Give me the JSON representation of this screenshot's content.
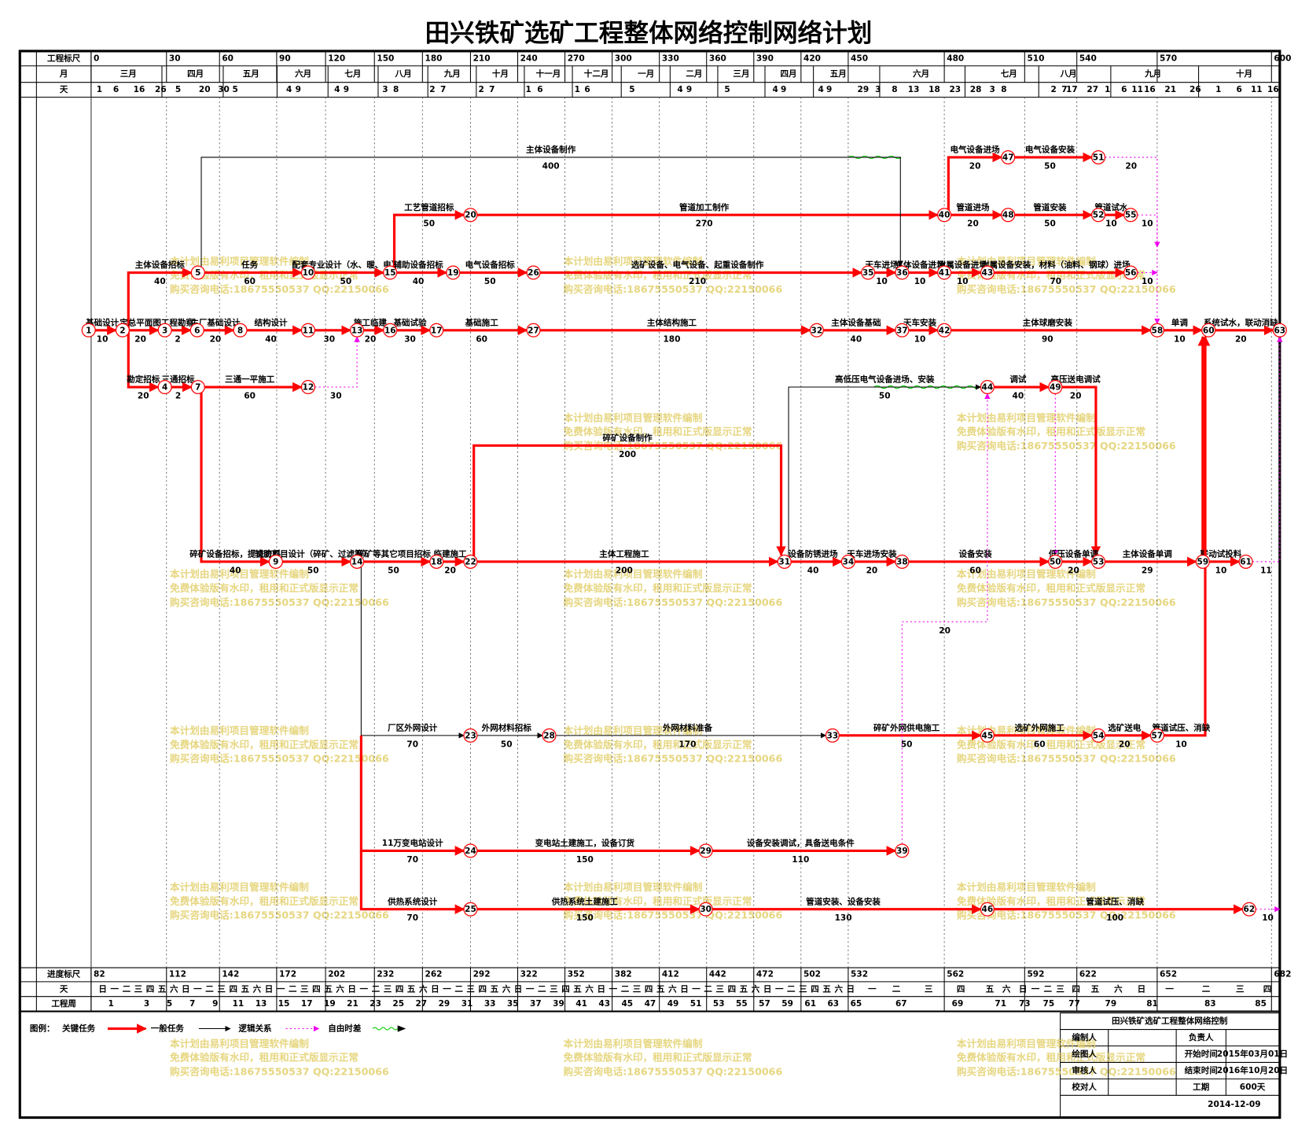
{
  "title": "田兴铁矿选矿工程整体网络控制网络计划",
  "header": {
    "scale_label": "工程标尺",
    "scale_ticks": [
      0,
      30,
      60,
      90,
      120,
      150,
      180,
      210,
      240,
      270,
      300,
      330,
      360,
      390,
      420,
      450,
      480,
      510,
      540,
      570,
      600
    ],
    "month_label": "月",
    "months": [
      "三月",
      "四月",
      "五月",
      "六月",
      "七月",
      "八月",
      "九月",
      "十月",
      "十一月",
      "十二月",
      "一月",
      "二月",
      "三月",
      "四月",
      "五月",
      "六月",
      "七月",
      "八月",
      "九月",
      "十月"
    ],
    "day_label": "天",
    "days": [
      1,
      6,
      16,
      26,
      5,
      20,
      30,
      5,
      4,
      9,
      4,
      9,
      3,
      8,
      2,
      7,
      2,
      7,
      1,
      6,
      1,
      6,
      5,
      4,
      9,
      5,
      4,
      9,
      4,
      9,
      29,
      3,
      8,
      13,
      18,
      23,
      28,
      3,
      8,
      2,
      7,
      17,
      27,
      1,
      6,
      11,
      16,
      21,
      26,
      1,
      6,
      11,
      16
    ]
  },
  "footer": {
    "progress_label": "进度标尺",
    "progress_ticks": [
      82,
      112,
      142,
      172,
      202,
      232,
      262,
      292,
      322,
      352,
      382,
      412,
      442,
      472,
      502,
      532,
      562,
      592,
      622,
      652,
      682
    ],
    "weekday_label": "天",
    "weekdays": [
      "日",
      "一",
      "二",
      "三",
      "四",
      "五",
      "六",
      "日",
      "一",
      "二",
      "三",
      "四",
      "五",
      "六",
      "日",
      "一",
      "二",
      "三",
      "四",
      "五",
      "六",
      "日",
      "一",
      "二",
      "三",
      "四",
      "五",
      "六",
      "日",
      "一",
      "二",
      "三",
      "四",
      "五",
      "六",
      "日",
      "一",
      "二",
      "三",
      "四",
      "五",
      "六",
      "日",
      "一",
      "二",
      "三",
      "四",
      "五",
      "六",
      "日",
      "一",
      "二",
      "三",
      "四",
      "五",
      "六",
      "日",
      "一",
      "二",
      "三",
      "四",
      "五",
      "六",
      "日",
      "一",
      "二",
      "三",
      "四",
      "五",
      "六",
      "日",
      "一",
      "二",
      "三",
      "四",
      "五",
      "六",
      "日",
      "一",
      "二",
      "三",
      "四"
    ],
    "week_label": "工程周",
    "weeks": [
      1,
      3,
      5,
      7,
      9,
      11,
      13,
      15,
      17,
      19,
      21,
      23,
      25,
      27,
      29,
      31,
      33,
      35,
      37,
      39,
      41,
      43,
      45,
      47,
      49,
      51,
      53,
      55,
      57,
      59,
      61,
      63,
      65,
      67,
      69,
      71,
      73,
      75,
      77,
      79,
      81,
      83,
      85
    ]
  },
  "nodes": [
    1,
    2,
    3,
    4,
    5,
    6,
    7,
    8,
    9,
    10,
    11,
    12,
    13,
    14,
    15,
    16,
    17,
    18,
    19,
    20,
    22,
    23,
    24,
    25,
    26,
    27,
    28,
    29,
    30,
    31,
    32,
    33,
    34,
    35,
    36,
    37,
    38,
    39,
    40,
    41,
    42,
    43,
    44,
    45,
    46,
    47,
    48,
    49,
    50,
    51,
    52,
    53,
    54,
    55,
    56,
    57,
    58,
    59,
    60,
    61,
    62,
    63
  ],
  "activities": [
    {
      "name": "基础设计",
      "duration": 10
    },
    {
      "name": "主体设备招标",
      "duration": 40
    },
    {
      "name": "定总平面图",
      "duration": 20
    },
    {
      "name": "勘定招标",
      "duration": 20
    },
    {
      "name": "工程勘察",
      "duration": 2
    },
    {
      "name": "三通招标",
      "duration": 2
    },
    {
      "name": "主厂基础设计",
      "duration": 20
    },
    {
      "name": "任务",
      "duration": 60
    },
    {
      "name": "结构设计",
      "duration": 40
    },
    {
      "name": "三通一平施工",
      "duration": 60
    },
    {
      "duration": 30
    },
    {
      "duration": 30
    },
    {
      "name": "配套专业设计（水、暖、电）",
      "duration": 50
    },
    {
      "name": "施工临建",
      "duration": 20
    },
    {
      "name": "工艺管道招标",
      "duration": 50
    },
    {
      "name": "辅助设备招标",
      "duration": 40
    },
    {
      "name": "基础试验",
      "duration": 30
    },
    {
      "name": "电气设备招标",
      "duration": 50
    },
    {
      "name": "基础施工",
      "duration": 60
    },
    {
      "name": "管道加工制作",
      "duration": 270
    },
    {
      "name": "选矿设备、电气设备、起重设备制作",
      "duration": 210
    },
    {
      "name": "主体结构施工",
      "duration": 180
    },
    {
      "name": "主体设备制作",
      "duration": 400
    },
    {
      "name": "天车进场",
      "duration": 10
    },
    {
      "name": "主体设备进场",
      "duration": 10
    },
    {
      "name": "附属设备进场",
      "duration": 10
    },
    {
      "name": "附属设备安装，材料（油料、钢球）进场",
      "duration": 70
    },
    {
      "name": "主体设备基础",
      "duration": 40
    },
    {
      "name": "天车安装",
      "duration": 10
    },
    {
      "name": "主体球磨安装",
      "duration": 90
    },
    {
      "name": "电气设备进场",
      "duration": 20
    },
    {
      "name": "电气设备安装",
      "duration": 50
    },
    {
      "duration": 20
    },
    {
      "name": "管道进场",
      "duration": 20
    },
    {
      "name": "管道安装",
      "duration": 50
    },
    {
      "name": "管道试水",
      "duration": 10
    },
    {
      "duration": 10
    },
    {
      "duration": 10
    },
    {
      "name": "单调",
      "duration": 10
    },
    {
      "name": "系统试水，联动消缺",
      "duration": 20
    },
    {
      "name": "碎矿设备招标，提交资料",
      "duration": 40
    },
    {
      "name": "辅助项目设计（碎矿、过滤等）",
      "duration": 50
    },
    {
      "name": "碎矿等其它项目招标",
      "duration": 50
    },
    {
      "name": "临建施工",
      "duration": 20
    },
    {
      "name": "碎矿设备制作",
      "duration": 200
    },
    {
      "name": "主体工程施工",
      "duration": 200
    },
    {
      "name": "设备防锈进场",
      "duration": 40
    },
    {
      "name": "高低压电气设备进场、安装",
      "duration": 50
    },
    {
      "name": "天车进场安装",
      "duration": 20
    },
    {
      "name": "设备安装",
      "duration": 60
    },
    {
      "name": "调试",
      "duration": 40
    },
    {
      "name": "高压送电调试",
      "duration": 20
    },
    {
      "name": "低压设备单调",
      "duration": 20
    },
    {
      "name": "主体设备单调",
      "duration": 29
    },
    {
      "name": "联动试投料",
      "duration": 10
    },
    {
      "duration": 11
    },
    {
      "name": "厂区外网设计",
      "duration": 70
    },
    {
      "name": "外网材料招标",
      "duration": 50
    },
    {
      "name": "外网材料准备",
      "duration": 170
    },
    {
      "name": "碎矿外网供电施工",
      "duration": 50
    },
    {
      "name": "选矿外网施工",
      "duration": 60
    },
    {
      "name": "选矿送电",
      "duration": 20
    },
    {
      "name": "管道试压、消缺",
      "duration": 10
    },
    {
      "name": "11万变电站设计",
      "duration": 70
    },
    {
      "name": "变电站土建施工，设备订货",
      "duration": 150
    },
    {
      "name": "设备安装调试，具备送电条件",
      "duration": 110
    },
    {
      "duration": 20
    },
    {
      "name": "供热系统设计",
      "duration": 70
    },
    {
      "name": "供热系统土建施工",
      "duration": 150
    },
    {
      "name": "管道安装、设备安装",
      "duration": 130
    },
    {
      "name": "管道试压、消缺",
      "duration": 100
    },
    {
      "duration": 10
    }
  ],
  "legend": {
    "title": "图例：",
    "items": [
      "关键任务",
      "一般任务",
      "逻辑关系",
      "自由时差"
    ]
  },
  "watermark": [
    "本计划由易利项目管理软件编制",
    "免费体验版有水印，租用和正式版显示正常",
    "购买咨询电话:18675550537 QQ:22150066"
  ],
  "info": {
    "title": "田兴铁矿选矿工程整体网络控制",
    "rows": [
      [
        "编制人",
        "负责人"
      ],
      [
        "绘图人",
        "开始时间",
        "2015年03月01日"
      ],
      [
        "审核人",
        "结束时间",
        "2016年10月20日"
      ],
      [
        "校对人",
        "工期",
        "600天"
      ]
    ],
    "date": "2014-12-09"
  }
}
